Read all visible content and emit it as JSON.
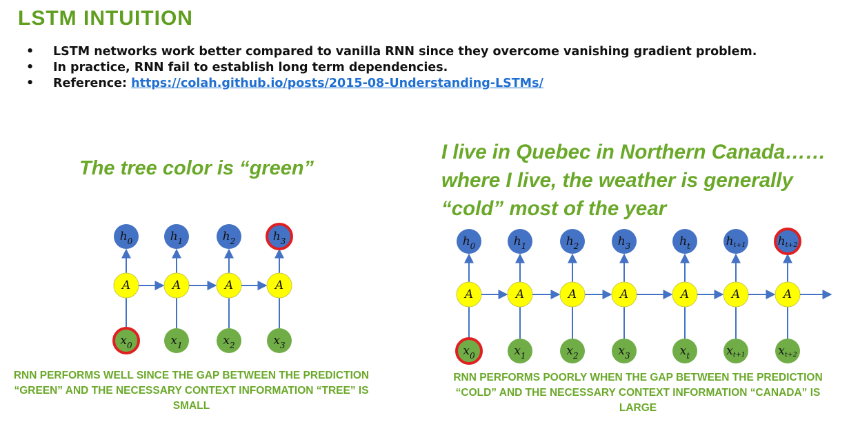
{
  "title": "LSTM INTUITION",
  "bullets": [
    "LSTM networks work better compared to vanilla RNN since they overcome vanishing gradient problem.",
    "In practice, RNN fail to establish long term dependencies."
  ],
  "reference": {
    "label": "Reference: ",
    "link": "https://colah.github.io/posts/2015-08-Understanding-LSTMs/"
  },
  "left_example": {
    "sentence": "The tree color is “green”",
    "conclusion": "RNN PERFORMS WELL SINCE THE GAP BETWEEN THE PREDICTION “GREEN” AND THE NECESSARY CONTEXT INFORMATION “TREE” IS SMALL"
  },
  "right_example": {
    "sentence": "I live in Quebec in Northern Canada……where I live, the weather is generally “cold” most of the year",
    "conclusion": "RNN PERFORMS POORLY WHEN THE GAP BETWEEN THE PREDICTION “COLD” AND THE NECESSARY CONTEXT INFORMATION “CANADA” IS LARGE"
  },
  "colors": {
    "output_node": "#4472c4",
    "cell_node": "#ffff00",
    "input_node": "#70ad47",
    "highlight_ring": "#e02020",
    "arrow": "#4472c4",
    "title_green": "#5f9e1e",
    "text_green": "#6aa829"
  },
  "diagrams": {
    "left": {
      "cell_label": "A",
      "steps": [
        {
          "output": "h",
          "input": "x",
          "sub": "0",
          "highlight_output": false,
          "highlight_input": true
        },
        {
          "output": "h",
          "input": "x",
          "sub": "1",
          "highlight_output": false,
          "highlight_input": false
        },
        {
          "output": "h",
          "input": "x",
          "sub": "2",
          "highlight_output": false,
          "highlight_input": false
        },
        {
          "output": "h",
          "input": "x",
          "sub": "3",
          "highlight_output": true,
          "highlight_input": false
        }
      ],
      "trailing_arrow": false
    },
    "right": {
      "cell_label": "A",
      "steps": [
        {
          "output": "h",
          "input": "x",
          "sub": "0",
          "highlight_output": false,
          "highlight_input": true
        },
        {
          "output": "h",
          "input": "x",
          "sub": "1",
          "highlight_output": false,
          "highlight_input": false
        },
        {
          "output": "h",
          "input": "x",
          "sub": "2",
          "highlight_output": false,
          "highlight_input": false
        },
        {
          "output": "h",
          "input": "x",
          "sub": "3",
          "highlight_output": false,
          "highlight_input": false
        },
        {
          "output": "h",
          "input": "x",
          "sub": "t",
          "highlight_output": false,
          "highlight_input": false
        },
        {
          "output": "h",
          "input": "x",
          "sub": "t+1",
          "highlight_output": false,
          "highlight_input": false
        },
        {
          "output": "h",
          "input": "x",
          "sub": "t+2",
          "highlight_output": true,
          "highlight_input": false
        }
      ],
      "trailing_arrow": true
    }
  }
}
